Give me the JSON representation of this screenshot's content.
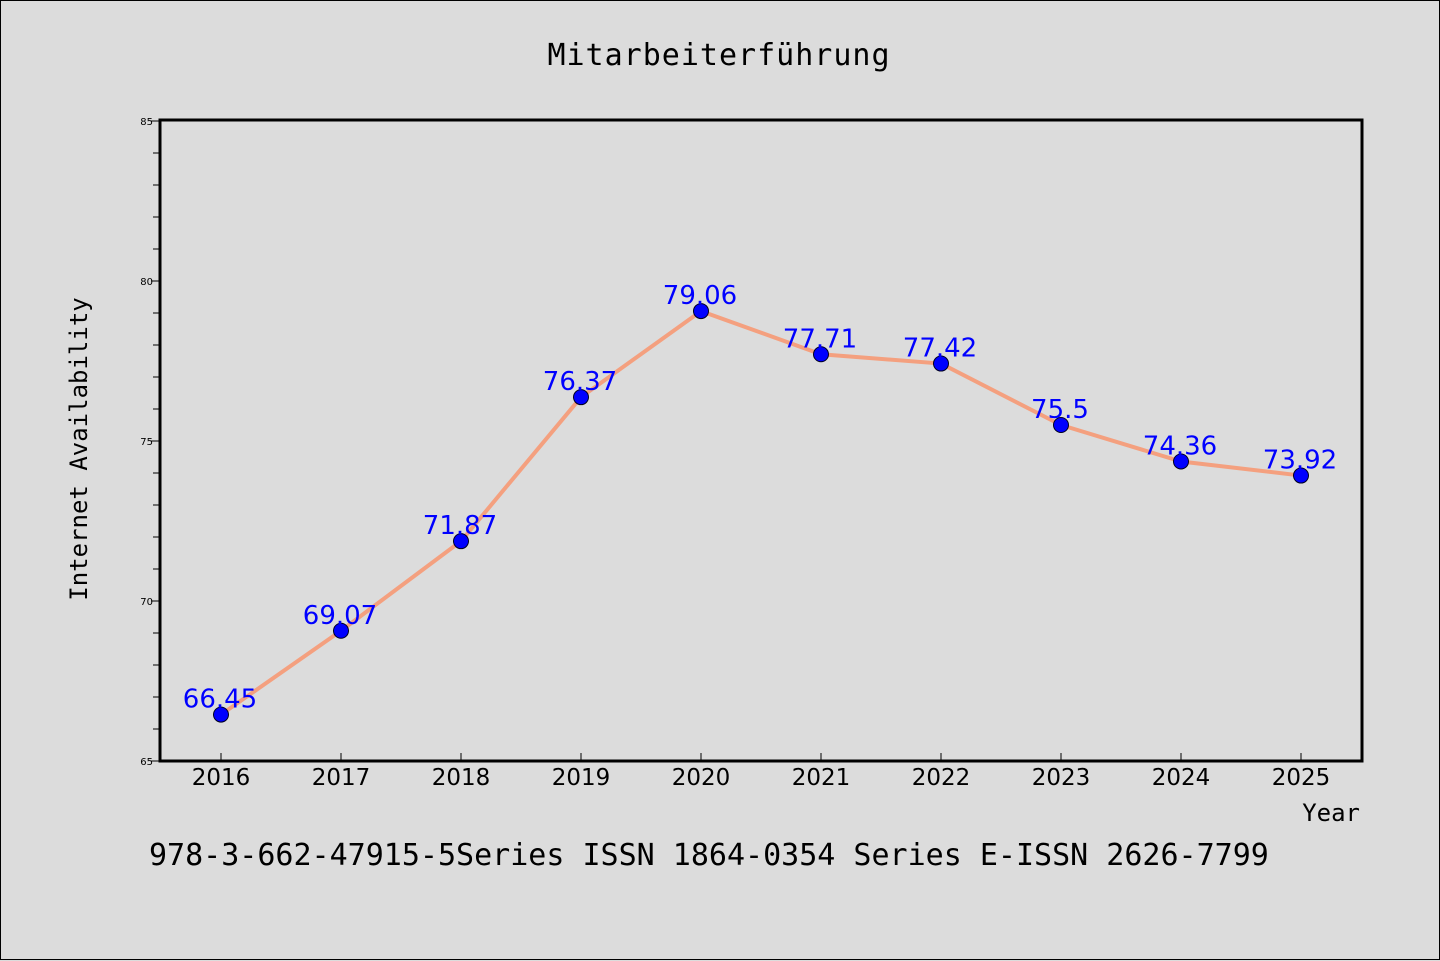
{
  "chart_data": {
    "type": "line",
    "title": "Mitarbeiterführung",
    "xlabel": "Year",
    "ylabel": "Internet Availability",
    "categories": [
      "2016",
      "2017",
      "2018",
      "2019",
      "2020",
      "2021",
      "2022",
      "2023",
      "2024",
      "2025"
    ],
    "series": [
      {
        "values": [
          66.45,
          69.07,
          71.87,
          76.37,
          79.06,
          77.71,
          77.42,
          75.5,
          74.36,
          73.92
        ],
        "data_labels": [
          "66.45",
          "69.07",
          "71.87",
          "76.37",
          "79.06",
          "77.71",
          "77.42",
          "75.5",
          "74.36",
          "73.92"
        ]
      }
    ],
    "ylim": [
      65,
      85
    ],
    "y_ticks": [
      "65",
      "70",
      "75",
      "80",
      "85"
    ],
    "grid": false,
    "line_color": "#f4a07f",
    "marker_color": "#0000ff",
    "label_color": "#0000ff"
  },
  "footer": {
    "text": "978-3-662-47915-5Series ISSN 1864-0354 Series E-ISSN 2626-7799"
  }
}
